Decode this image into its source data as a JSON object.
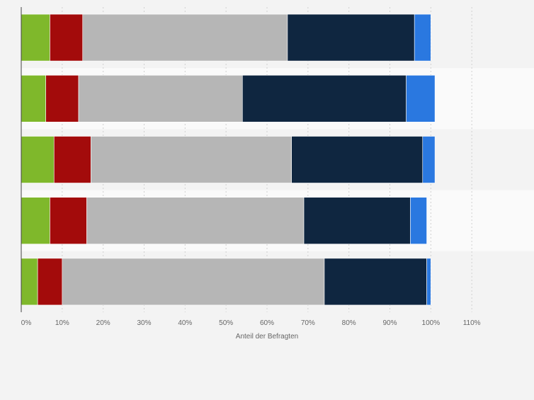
{
  "chart_data": {
    "type": "bar",
    "orientation": "horizontal",
    "stacked": true,
    "categories": [
      "",
      "",
      "",
      "",
      ""
    ],
    "series": [
      {
        "color": "#7fb82b",
        "values": [
          7,
          6,
          8,
          7,
          4
        ]
      },
      {
        "color": "#a30b0b",
        "values": [
          8,
          8,
          9,
          9,
          6
        ]
      },
      {
        "color": "#b6b6b6",
        "values": [
          50,
          40,
          49,
          53,
          64
        ]
      },
      {
        "color": "#0f2640",
        "values": [
          31,
          40,
          32,
          26,
          25
        ]
      },
      {
        "color": "#2a78e0",
        "values": [
          4,
          7,
          3,
          4,
          1
        ]
      }
    ],
    "xlim": [
      0,
      120
    ],
    "xticks": [
      0,
      10,
      20,
      30,
      40,
      50,
      60,
      70,
      80,
      90,
      100,
      110
    ],
    "tick_labels": [
      "0%",
      "10%",
      "20%",
      "30%",
      "40%",
      "50%",
      "60%",
      "70%",
      "80%",
      "90%",
      "100%",
      "110%"
    ],
    "xlabel": "Anteil der Befragten",
    "grid": true,
    "legend": false
  }
}
